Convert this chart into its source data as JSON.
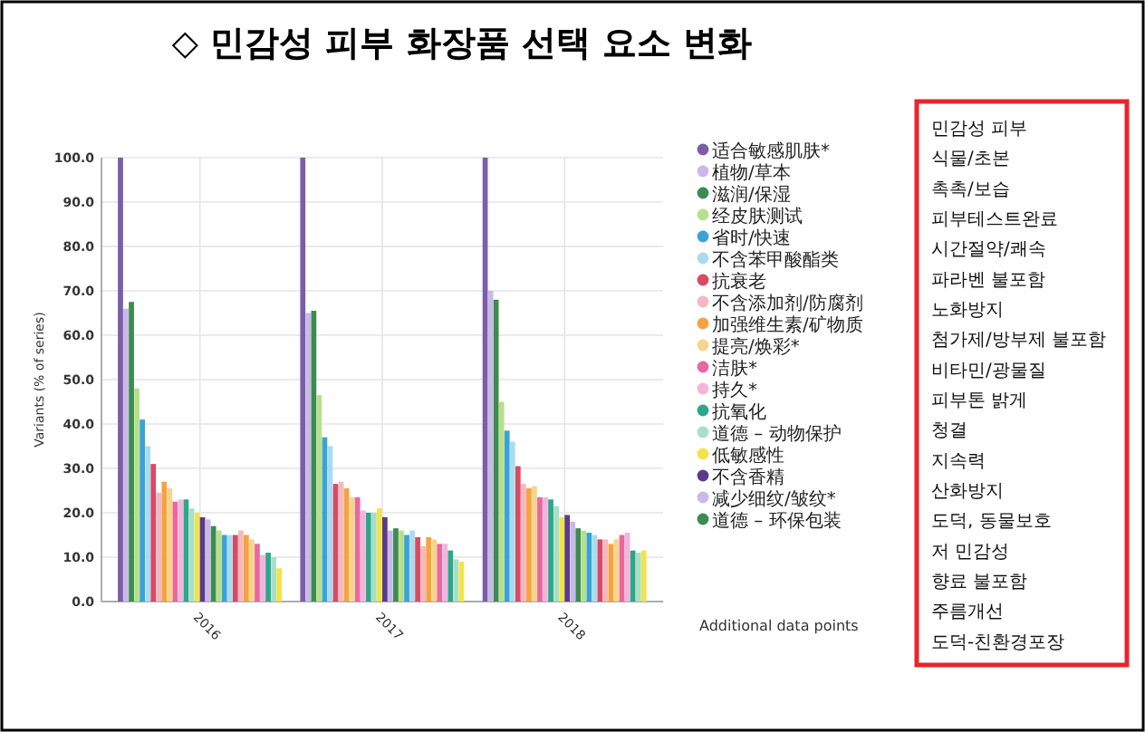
{
  "chart_data": {
    "type": "bar",
    "title": "◇ 민감성 피부 화장품 선택 요소 변화",
    "ylabel": "Variants (% of series)",
    "categories": [
      "2016",
      "2017",
      "2018"
    ],
    "ylim": [
      0,
      100
    ],
    "yticks": [
      {
        "value": 0,
        "label": "0.0"
      },
      {
        "value": 10,
        "label": "10.0"
      },
      {
        "value": 20,
        "label": "20.0"
      },
      {
        "value": 30,
        "label": "30.0"
      },
      {
        "value": 40,
        "label": "40.0"
      },
      {
        "value": 50,
        "label": "50.0"
      },
      {
        "value": 60,
        "label": "60.0"
      },
      {
        "value": 70,
        "label": "70.0"
      },
      {
        "value": 80,
        "label": "80.0"
      },
      {
        "value": 90,
        "label": "90.0"
      },
      {
        "value": 100,
        "label": "100.0"
      }
    ],
    "grid": true,
    "legend": "right",
    "series": [
      {
        "name": "适合敏感肌肤*",
        "color": "#7b5ea7",
        "values": [
          100,
          100,
          100
        ]
      },
      {
        "name": "植物/草本",
        "color": "#c9b8e8",
        "values": [
          66,
          65,
          70
        ]
      },
      {
        "name": "滋润/保湿",
        "color": "#3c8c4f",
        "values": [
          67.5,
          65.5,
          68
        ]
      },
      {
        "name": "经皮肤测试",
        "color": "#b8e08c",
        "values": [
          48,
          46.5,
          45
        ]
      },
      {
        "name": "省时/快速",
        "color": "#3aa3d6",
        "values": [
          41,
          37,
          38.5
        ]
      },
      {
        "name": "不含苯甲酸酯类",
        "color": "#a9dcef",
        "values": [
          35,
          35,
          36
        ]
      },
      {
        "name": "抗衰老",
        "color": "#d94a63",
        "values": [
          31,
          26.5,
          30.5
        ]
      },
      {
        "name": "不含添加剂/防腐剂",
        "color": "#f4b8be",
        "values": [
          24.5,
          27,
          26.5
        ]
      },
      {
        "name": "加强维生素/矿物质",
        "color": "#f5a340",
        "values": [
          27,
          25.5,
          25.5
        ]
      },
      {
        "name": "提亮/焕彩*",
        "color": "#f7d48c",
        "values": [
          25.5,
          23.5,
          26
        ]
      },
      {
        "name": "洁肤*",
        "color": "#e9679f",
        "values": [
          22.5,
          23.5,
          23.5
        ]
      },
      {
        "name": "持久*",
        "color": "#f2b5dc",
        "values": [
          23,
          20.5,
          23.5
        ]
      },
      {
        "name": "抗氧化",
        "color": "#2ea68a",
        "values": [
          23,
          20,
          23
        ]
      },
      {
        "name": "道德 – 动物保护",
        "color": "#a8dfc8",
        "values": [
          21,
          20,
          21.5
        ]
      },
      {
        "name": "低敏感性",
        "color": "#f2e34a",
        "values": [
          20,
          21,
          19
        ]
      },
      {
        "name": "不含香精",
        "color": "#5b3a8c",
        "values": [
          19,
          19,
          19.5
        ]
      },
      {
        "name": "减少细纹/皱纹*",
        "color": "#c9b8e8",
        "values": [
          18.5,
          16,
          18
        ]
      },
      {
        "name": "道德 – 环保包装",
        "color": "#3c8c4f",
        "values": [
          17,
          16.5,
          16.5
        ]
      },
      {
        "color": "#b8e08c",
        "values": [
          16,
          16,
          16
        ]
      },
      {
        "color": "#3aa3d6",
        "values": [
          15,
          15,
          15.5
        ]
      },
      {
        "color": "#a9dcef",
        "values": [
          15,
          16,
          15
        ]
      },
      {
        "color": "#d94a63",
        "values": [
          15,
          14.5,
          14
        ]
      },
      {
        "color": "#f4b8be",
        "values": [
          16,
          12.5,
          14
        ]
      },
      {
        "color": "#f5a340",
        "values": [
          15,
          14.5,
          13
        ]
      },
      {
        "color": "#f7d48c",
        "values": [
          14,
          14,
          14
        ]
      },
      {
        "color": "#e9679f",
        "values": [
          13,
          13,
          15
        ]
      },
      {
        "color": "#f2b5dc",
        "values": [
          10.5,
          13,
          15.5
        ]
      },
      {
        "color": "#2ea68a",
        "values": [
          11,
          11.5,
          11.5
        ]
      },
      {
        "color": "#a8dfc8",
        "values": [
          10,
          9.5,
          11
        ]
      },
      {
        "color": "#f2e34a",
        "values": [
          7.5,
          9,
          11.5
        ]
      }
    ],
    "annotations": [
      "Additional data points",
      "민감성 피부",
      "식물/초본",
      "촉촉/보습",
      "피부테스트완료",
      "시간절약/쾌속",
      "파라벤 불포함",
      "노화방지",
      "첨가제/방부제 불포함",
      "비타민/광물질",
      "피부톤 밝게",
      "청결",
      "지속력",
      "산화방지",
      "도덕, 동물보호",
      "저 민감성",
      "향료 불포함",
      "주름개선",
      "도덕-친환경포장"
    ]
  }
}
